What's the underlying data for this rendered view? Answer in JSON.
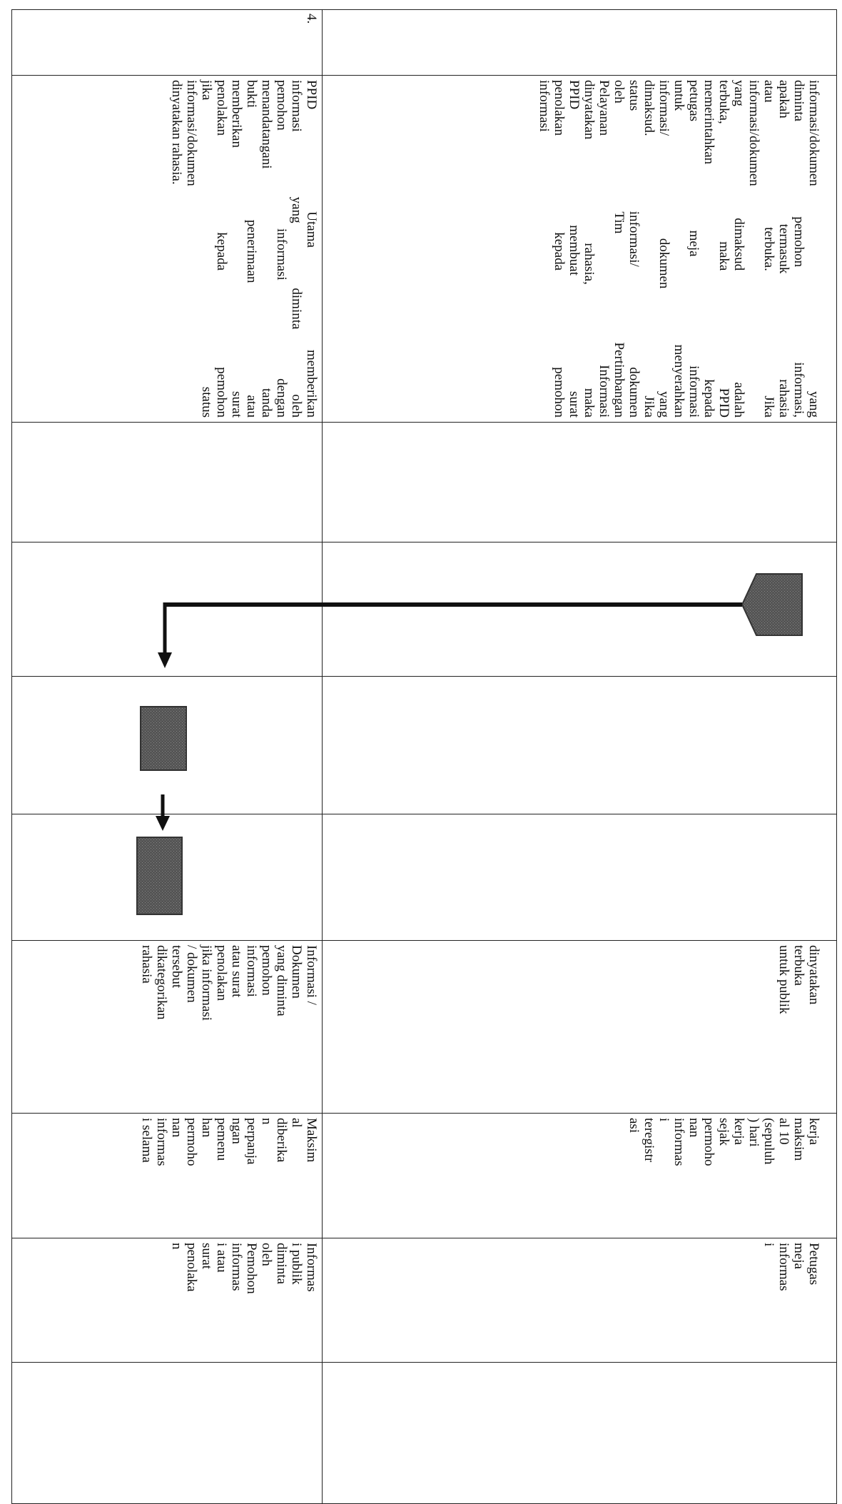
{
  "table": {
    "rows": [
      {
        "cells": [
          [],
          [
            "informasi/dokumen yang",
            "diminta pemohon informasi,",
            "apakah termasuk rahasia",
            "atau terbuka. Jika",
            "informasi/dokumen",
            "yang dimaksud adalah",
            "terbuka, maka PPID",
            "memerintahkan kepada",
            "petugas meja informasi",
            "untuk menyerahkan",
            "informasi/ dokumen yang",
            "dimaksud. Jika",
            "status informasi/ dokumen",
            "oleh Tim Pertimbangan",
            "Pelayanan Informasi",
            "dinyatakan rahasia, maka",
            "PPID membuat surat",
            "penolakan kepada pemohon",
            "informasi"
          ],
          [],
          [],
          [],
          [],
          [
            "dinyatakan",
            "terbuka",
            "untuk publik"
          ],
          [
            "kerja",
            "maksim",
            "al 10",
            "(sepuluh",
            ") hari",
            "kerja",
            "sejak",
            "permoho",
            "nan",
            "informas",
            "i",
            "teregistr",
            "asi"
          ],
          [
            "Petugas",
            "meja",
            "informas",
            "i"
          ],
          []
        ]
      },
      {
        "cells": [
          [
            "4."
          ],
          [
            "PPID Utama memberikan",
            "informasi yang diminta oleh",
            "pemohon informasi dengan",
            "menandatangani tanda",
            "bukti penerimaan atau",
            "memberikan surat",
            "penolakan kepada pemohon",
            "jika status",
            "informasi/dokumen",
            "dinyatakan rahasia."
          ],
          [],
          [],
          [],
          [],
          [
            "Informasi /",
            "Dokumen",
            "yang diminta",
            "pemohon",
            "informasi",
            "atau surat",
            "penolakan",
            "jika informasi",
            "/ dokumen",
            "tersebut",
            "dikategorikan",
            "rahasia"
          ],
          [
            "Maksim",
            "al",
            "diberika",
            "n",
            "perpanja",
            "ngan",
            "pemenu",
            "han",
            "permoho",
            "nan",
            "informas",
            "i selama"
          ],
          [
            "Informas",
            "i publik",
            "diminta",
            "oleh",
            "Pemohon",
            "informas",
            "i atau",
            "surat",
            "penolaka",
            "n"
          ],
          []
        ]
      }
    ]
  }
}
